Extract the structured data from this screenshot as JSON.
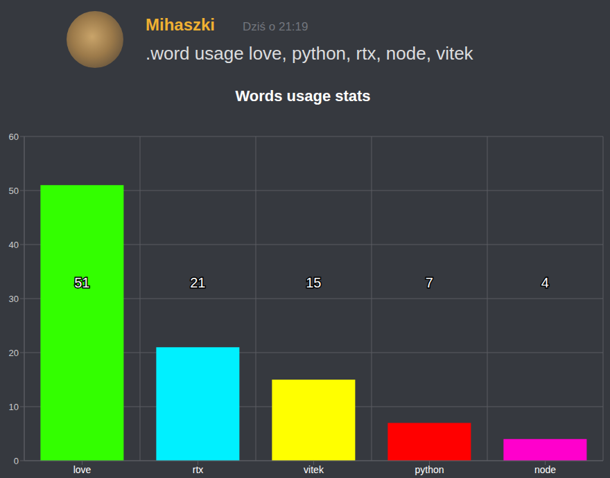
{
  "message": {
    "author": "Mihaszki",
    "timestamp": "Dziś o 21:19",
    "text": ".word usage love, python, rtx, node, vitek"
  },
  "chart_data": {
    "type": "bar",
    "title": "Words usage stats",
    "categories": [
      "love",
      "rtx",
      "vitek",
      "python",
      "node"
    ],
    "values": [
      51,
      21,
      15,
      7,
      4
    ],
    "colors": [
      "#33ff00",
      "#00f0ff",
      "#ffff00",
      "#ff0000",
      "#ff00cc"
    ],
    "ylim": [
      0,
      60
    ],
    "yticks": [
      0,
      10,
      20,
      30,
      40,
      50,
      60
    ],
    "grid": true,
    "data_labels": true
  }
}
